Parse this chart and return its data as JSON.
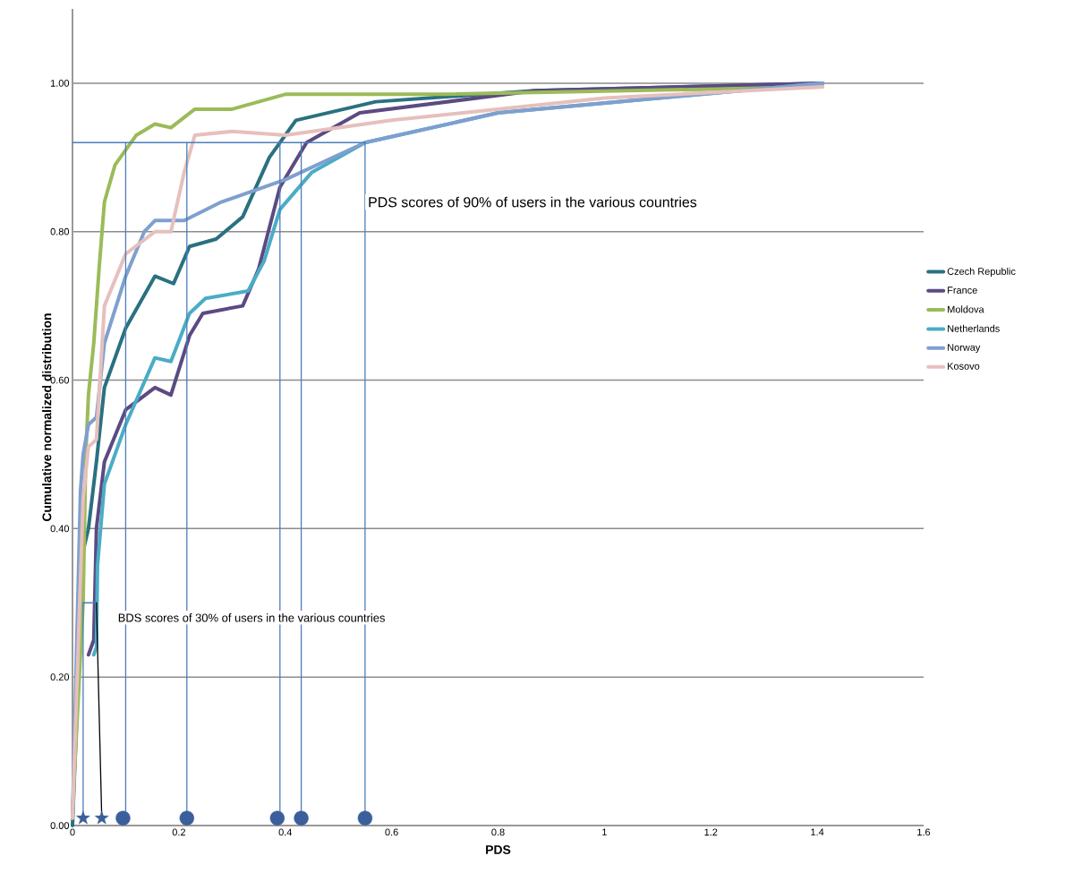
{
  "chart_data": {
    "type": "line",
    "xlabel": "PDS",
    "ylabel": "Cumulative normalized distribution",
    "xlim": [
      0,
      1.6
    ],
    "ylim": [
      0,
      1.1
    ],
    "xticks": [
      0,
      0.2,
      0.4,
      0.6,
      0.8,
      1,
      1.2,
      1.4,
      1.6
    ],
    "yticks": [
      {
        "value": 0,
        "label": "0.00"
      },
      {
        "value": 0.2,
        "label": "0.20"
      },
      {
        "value": 0.4,
        "label": "0.40"
      },
      {
        "value": 0.6,
        "label": "0.60"
      },
      {
        "value": 0.8,
        "label": "0.80"
      },
      {
        "value": 1.0,
        "label": "1.00"
      }
    ],
    "grid": "y",
    "legend": "right",
    "annotations": [
      "PDS scores of 90% of users in the various countries",
      "BDS scores of 30% of users in the various countries"
    ],
    "series": [
      {
        "name": "Czech Republic",
        "color": "#2a7180",
        "x": [
          0,
          0.02,
          0.03,
          0.045,
          0.06,
          0.1,
          0.155,
          0.19,
          0.22,
          0.27,
          0.32,
          0.37,
          0.42,
          0.57,
          0.87,
          1.41
        ],
        "values": [
          0,
          0.37,
          0.4,
          0.49,
          0.59,
          0.67,
          0.74,
          0.73,
          0.78,
          0.79,
          0.82,
          0.9,
          0.95,
          0.975,
          0.99,
          1.0
        ]
      },
      {
        "name": "France",
        "color": "#5c4a82",
        "x": [
          0.03,
          0.04,
          0.045,
          0.06,
          0.1,
          0.155,
          0.185,
          0.22,
          0.245,
          0.32,
          0.35,
          0.39,
          0.44,
          0.54,
          0.87,
          1.41
        ],
        "values": [
          0.23,
          0.25,
          0.4,
          0.49,
          0.56,
          0.59,
          0.58,
          0.66,
          0.69,
          0.7,
          0.75,
          0.86,
          0.92,
          0.96,
          0.99,
          1.0
        ]
      },
      {
        "name": "Moldova",
        "color": "#9bbb59",
        "x": [
          0,
          0.02,
          0.025,
          0.03,
          0.04,
          0.05,
          0.06,
          0.08,
          0.12,
          0.155,
          0.185,
          0.23,
          0.3,
          0.4,
          0.7,
          1.41
        ],
        "values": [
          0.02,
          0.3,
          0.5,
          0.58,
          0.65,
          0.75,
          0.84,
          0.89,
          0.93,
          0.945,
          0.94,
          0.965,
          0.965,
          0.985,
          0.985,
          0.995
        ]
      },
      {
        "name": "Netherlands",
        "color": "#4bacc6",
        "x": [
          0.04,
          0.045,
          0.047,
          0.06,
          0.1,
          0.155,
          0.185,
          0.22,
          0.25,
          0.33,
          0.36,
          0.39,
          0.45,
          0.55,
          0.8,
          1.41
        ],
        "values": [
          0.23,
          0.24,
          0.35,
          0.46,
          0.54,
          0.63,
          0.625,
          0.69,
          0.71,
          0.72,
          0.76,
          0.83,
          0.88,
          0.92,
          0.96,
          1.0
        ]
      },
      {
        "name": "Norway",
        "color": "#7f9fcf",
        "x": [
          0,
          0.015,
          0.02,
          0.03,
          0.045,
          0.06,
          0.1,
          0.135,
          0.155,
          0.21,
          0.28,
          0.4,
          0.55,
          0.8,
          1.41
        ],
        "values": [
          0.01,
          0.45,
          0.5,
          0.54,
          0.55,
          0.65,
          0.74,
          0.8,
          0.815,
          0.815,
          0.84,
          0.87,
          0.92,
          0.96,
          1.0
        ]
      },
      {
        "name": "Kosovo",
        "color": "#e6c0bd",
        "x": [
          0,
          0.02,
          0.03,
          0.045,
          0.06,
          0.1,
          0.155,
          0.185,
          0.21,
          0.23,
          0.3,
          0.4,
          0.6,
          1.0,
          1.41
        ],
        "values": [
          0.01,
          0.44,
          0.51,
          0.52,
          0.7,
          0.77,
          0.8,
          0.8,
          0.88,
          0.93,
          0.935,
          0.93,
          0.95,
          0.98,
          0.995
        ]
      },
      {
        "color": "#4a7ebb",
        "x": [
          0,
          0.55
        ],
        "values": [
          0.92,
          0.92
        ]
      },
      {
        "color": "#4a7ebb",
        "x": [
          0.1,
          0.1
        ],
        "values": [
          0.01,
          0.92
        ]
      },
      {
        "color": "#4a7ebb",
        "x": [
          0.215,
          0.215
        ],
        "values": [
          0.01,
          0.92
        ]
      },
      {
        "color": "#4a7ebb",
        "x": [
          0.39,
          0.39
        ],
        "values": [
          0.01,
          0.92
        ]
      },
      {
        "color": "#4a7ebb",
        "x": [
          0.43,
          0.43
        ],
        "values": [
          0.01,
          0.92
        ]
      },
      {
        "color": "#4a7ebb",
        "x": [
          0.55,
          0.55
        ],
        "values": [
          0.01,
          0.92
        ]
      },
      {
        "color": "#4a7ebb",
        "x": [
          0.02,
          0.045
        ],
        "values": [
          0.3,
          0.3
        ]
      },
      {
        "color": "#4a7ebb",
        "x": [
          0.02,
          0.02
        ],
        "values": [
          0.01,
          0.3
        ]
      },
      {
        "color": "#000000",
        "x": [
          0.055,
          0.045
        ],
        "values": [
          0.01,
          0.3
        ]
      },
      {
        "type": "scatter",
        "marker": "circle",
        "color": "#3a5f9a",
        "x": [
          0.095,
          0.215,
          0.385,
          0.43,
          0.55
        ],
        "values": [
          0.01,
          0.01,
          0.01,
          0.01,
          0.01
        ]
      },
      {
        "type": "scatter",
        "marker": "star",
        "color": "#3a5f9a",
        "x": [
          0.02,
          0.055
        ],
        "values": [
          0.01,
          0.01
        ]
      }
    ]
  }
}
